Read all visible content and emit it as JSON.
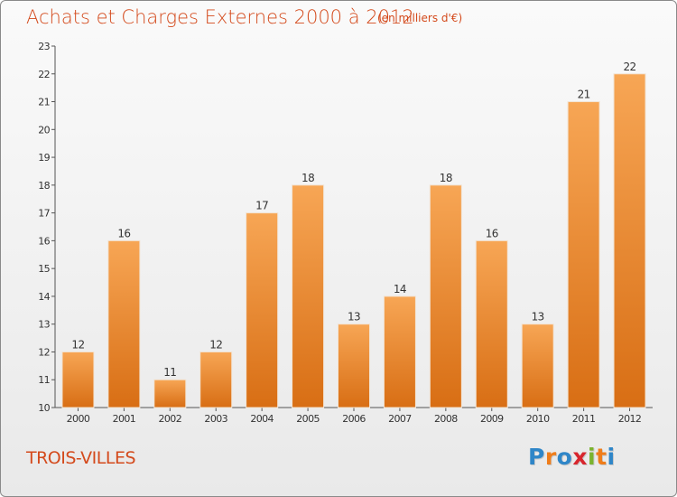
{
  "header": {
    "title": "Achats et Charges Externes 2000 à 2012",
    "unit": "(en milliers d'€)"
  },
  "footer": {
    "commune": "TROIS-VILLES",
    "logo_text": "Proxiti",
    "logo_letters": [
      {
        "ch": "P",
        "color": "#2f86c8"
      },
      {
        "ch": "r",
        "color": "#ef7d1a"
      },
      {
        "ch": "o",
        "color": "#2f86c8"
      },
      {
        "ch": "x",
        "color": "#d8262e"
      },
      {
        "ch": "i",
        "color": "#7bb32e"
      },
      {
        "ch": "t",
        "color": "#ef7d1a"
      },
      {
        "ch": "i",
        "color": "#2f86c8"
      }
    ]
  },
  "colors": {
    "title": "#d44a1c",
    "bar_top": "#f7a655",
    "bar_bottom": "#d86e14"
  },
  "chart_data": {
    "type": "bar",
    "title": "Achats et Charges Externes 2000 à 2012",
    "subtitle": "(en milliers d'€)",
    "categories": [
      "2000",
      "2001",
      "2002",
      "2003",
      "2004",
      "2005",
      "2006",
      "2007",
      "2008",
      "2009",
      "2010",
      "2011",
      "2012"
    ],
    "values": [
      12,
      16,
      11,
      12,
      17,
      18,
      13,
      14,
      18,
      16,
      13,
      21,
      22
    ],
    "ylim": [
      10,
      23
    ],
    "yticks": [
      10,
      11,
      12,
      13,
      14,
      15,
      16,
      17,
      18,
      19,
      20,
      21,
      22,
      23
    ],
    "grid": false,
    "legend": "none"
  }
}
